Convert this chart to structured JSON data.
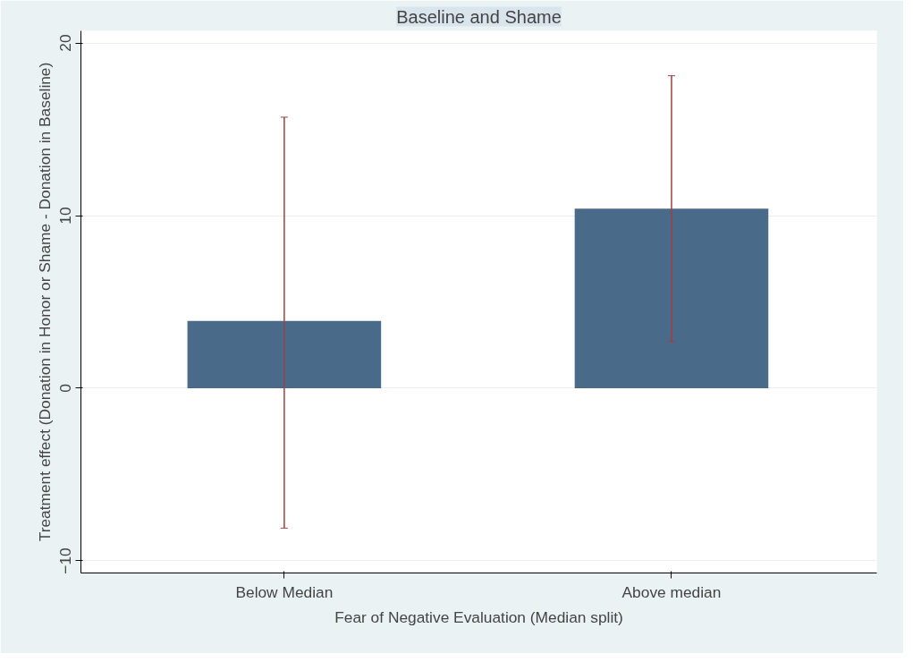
{
  "chart_data": {
    "type": "bar",
    "title": "Baseline and Shame",
    "xlabel": "Fear of Negative Evaluation (Median split)",
    "ylabel": "Treatment effect (Donation in Honor or Shame - Donation in Baseline)",
    "categories": [
      "Below Median",
      "Above median"
    ],
    "values": [
      3.9,
      10.4
    ],
    "errors": [
      [
        -8.1,
        15.7
      ],
      [
        2.7,
        18.1
      ]
    ],
    "color": "#4a6a89",
    "ylim": [
      -10.7,
      20.7
    ],
    "yticks": [
      -10,
      0,
      10,
      20
    ],
    "grid": "y"
  }
}
